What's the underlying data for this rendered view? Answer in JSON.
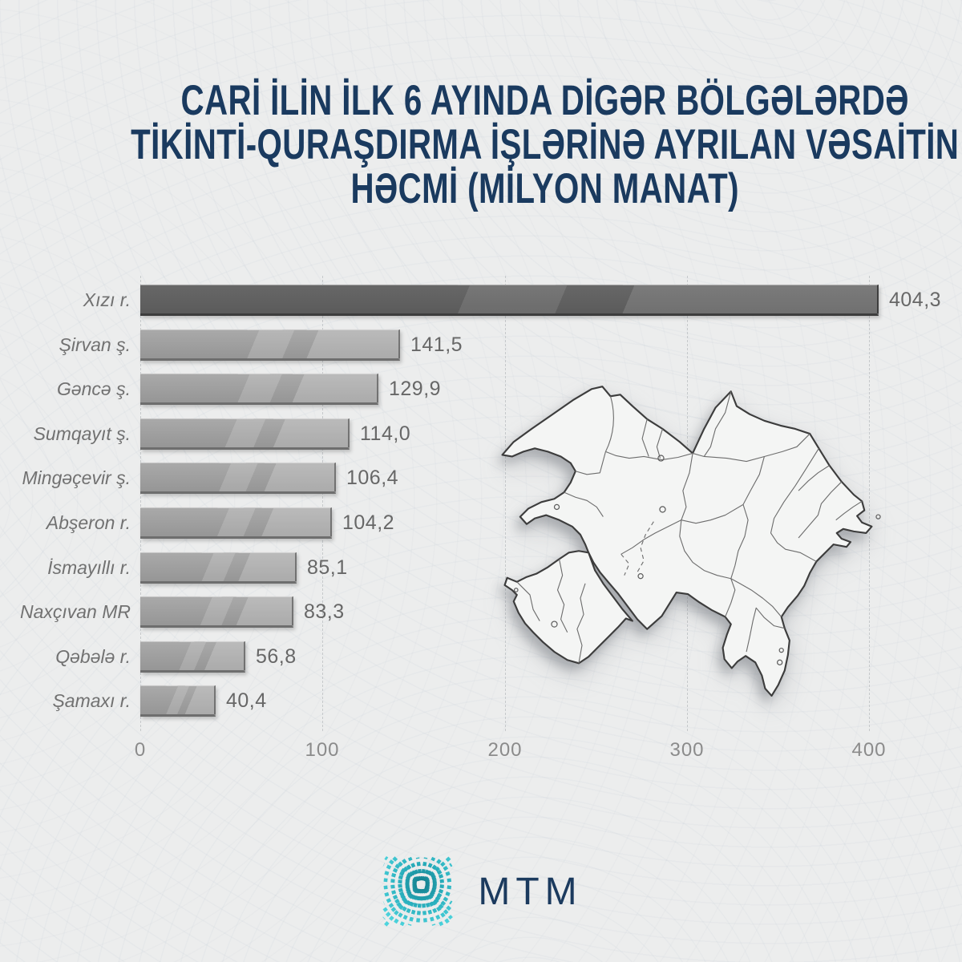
{
  "title": {
    "lines": [
      "CARİ İLİN İLK 6 AYINDA DİGƏR BÖLGƏLƏRDƏ",
      "TİKİNTİ-QURAŞDIRMA İŞLƏRİNƏ AYRILAN VƏSAİTİN",
      "HƏCMİ (MİLYON MANAT)"
    ],
    "color": "#1a3a5f"
  },
  "chart_data": {
    "type": "bar",
    "orientation": "horizontal",
    "title": "Cari ilin ilk 6 ayında digər bölgələrdə tikinti-quraşdırma işlərinə ayrılan vəsaitin həcmi (milyon manat)",
    "categories": [
      "Xızı r.",
      "Şirvan ş.",
      "Gəncə ş.",
      "Sumqayıt ş.",
      "Mingəçevir ş.",
      "Abşeron r.",
      "İsmayıllı r.",
      "Naxçıvan MR",
      "Qəbələ r.",
      "Şamaxı r."
    ],
    "values": [
      404.3,
      141.5,
      129.9,
      114.0,
      106.4,
      104.2,
      85.1,
      83.3,
      56.8,
      40.4
    ],
    "value_labels": [
      "404,3",
      "141,5",
      "129,9",
      "114,0",
      "106,4",
      "104,2",
      "85,1",
      "83,3",
      "56,8",
      "40,4"
    ],
    "x_ticks": [
      "0",
      "100",
      "200",
      "300",
      "400"
    ],
    "xlim": [
      0,
      444
    ],
    "grid": "vertical-dashed",
    "legend_position": "none",
    "highlight_index": 0,
    "bar_color": "#9b9b9b",
    "highlight_color": "#606060"
  },
  "map": {
    "name": "azerbaijan-districts-map"
  },
  "logo": {
    "wordmark": "MTM",
    "text_color": "#1b3a5e",
    "mark_gradient": [
      "#127988",
      "#28aebc",
      "#4dd4dd"
    ]
  }
}
